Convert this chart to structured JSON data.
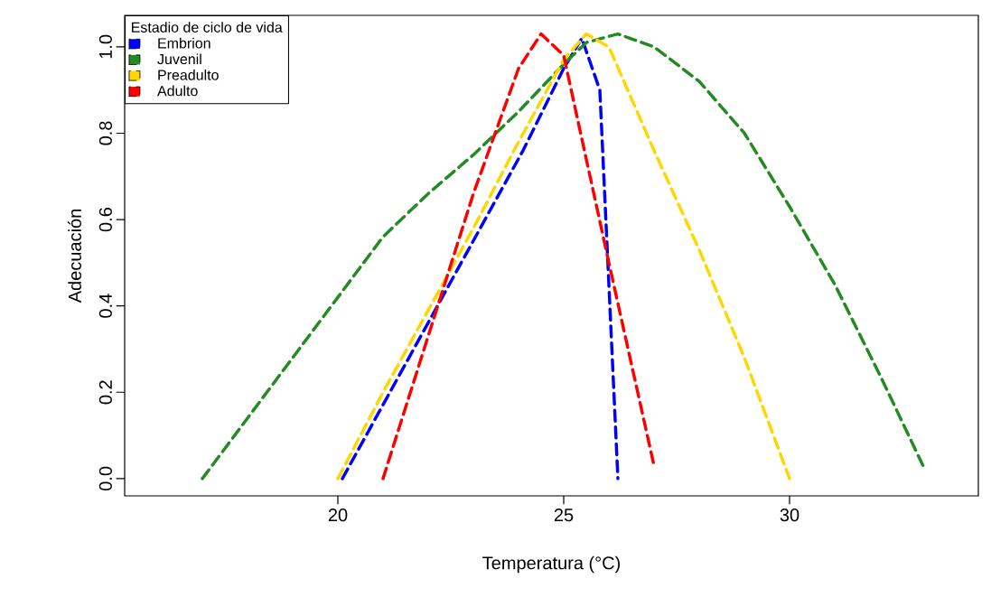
{
  "chart_data": {
    "type": "line",
    "xlabel": "Temperatura (°C)",
    "ylabel": "Adecuación",
    "legend_title": "Estadio de ciclo de vida",
    "legend": "top left",
    "line_style": "dashed",
    "marker": "none",
    "grid": false,
    "xlim": [
      15.28,
      34.18
    ],
    "ylim": [
      -0.04,
      1.073
    ],
    "xticks": [
      20,
      25,
      30
    ],
    "yticks": [
      {
        "value": 0,
        "label": "0.0"
      },
      {
        "value": 0.2,
        "label": "0.2"
      },
      {
        "value": 0.4,
        "label": "0.4"
      },
      {
        "value": 0.6,
        "label": "0.6"
      },
      {
        "value": 0.8,
        "label": "0.8"
      },
      {
        "value": 1,
        "label": "1.0"
      }
    ],
    "series": [
      {
        "name": "Embrion",
        "color": "#0000ff",
        "x": [
          20.1,
          21.1,
          22.1,
          23.1,
          24.1,
          25,
          25.4,
          25.8,
          26.2
        ],
        "values": [
          0,
          0.19,
          0.38,
          0.57,
          0.76,
          0.95,
          1.02,
          0.9,
          0
        ]
      },
      {
        "name": "Juvenil",
        "color": "#228b22",
        "x": [
          17,
          18,
          19,
          20,
          21,
          22,
          23,
          24,
          25,
          25.5,
          26.2,
          27,
          28,
          29,
          30,
          31,
          32,
          33
        ],
        "values": [
          0,
          0.14,
          0.28,
          0.42,
          0.56,
          0.66,
          0.75,
          0.85,
          0.96,
          1.01,
          1.03,
          1.0,
          0.92,
          0.8,
          0.63,
          0.45,
          0.24,
          0.02
        ]
      },
      {
        "name": "Preadulto",
        "color": "#ffd700",
        "x": [
          20,
          21,
          22,
          23,
          24,
          25,
          25.5,
          26,
          27,
          28,
          29,
          30
        ],
        "values": [
          0,
          0.2,
          0.39,
          0.58,
          0.78,
          0.97,
          1.03,
          1.0,
          0.76,
          0.53,
          0.28,
          0
        ]
      },
      {
        "name": "Adulto",
        "color": "#ff0000",
        "x": [
          21,
          22,
          23,
          24,
          24.5,
          25,
          26,
          27
        ],
        "values": [
          0,
          0.33,
          0.66,
          0.95,
          1.03,
          0.98,
          0.5,
          0.03
        ]
      }
    ]
  }
}
